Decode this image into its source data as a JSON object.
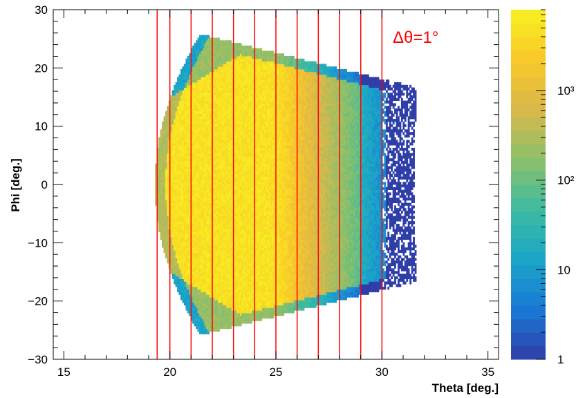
{
  "chart_data": {
    "type": "heatmap",
    "title": "",
    "xlabel": "Theta [deg.]",
    "ylabel": "Phi [deg.]",
    "xlim": [
      14.5,
      35.5
    ],
    "ylim": [
      -30,
      30
    ],
    "x_tick_labels": [
      "15",
      "20",
      "25",
      "30",
      "35"
    ],
    "y_tick_labels": [
      "30",
      "20",
      "10",
      "0",
      "−10",
      "−20",
      "−30"
    ],
    "x_ticks": [
      15,
      20,
      25,
      30,
      35
    ],
    "y_ticks": [
      30,
      20,
      10,
      0,
      -10,
      -20,
      -30
    ],
    "colorbar": {
      "scale": "log",
      "range": [
        1,
        8000
      ],
      "tick_labels": [
        "1",
        "10",
        "10²",
        "10³"
      ],
      "ticks": [
        1,
        10,
        100,
        1000
      ],
      "palette": [
        "#2f3ea8",
        "#1a78d6",
        "#1aa6c8",
        "#3dbba0",
        "#8cc06a",
        "#d9b84a",
        "#f9c82a",
        "#f8f020"
      ]
    },
    "distribution": {
      "phi_range_at_theta_22": [
        -25,
        25
      ],
      "phi_range_at_theta_30": [
        -17,
        17
      ],
      "theta_min_at_phi_0": 19.3,
      "theta_max_at_phi_0": 31.5,
      "peak_region": "theta 20-26, |phi| < 15"
    },
    "vertical_lines": {
      "color": "#ff0000",
      "x": [
        19.4,
        20,
        21,
        22,
        23,
        24,
        25,
        26,
        27,
        28,
        29,
        30
      ]
    },
    "annotations": [
      {
        "text": "Δθ=1°",
        "color": "#ff0000"
      }
    ],
    "grid": false
  }
}
